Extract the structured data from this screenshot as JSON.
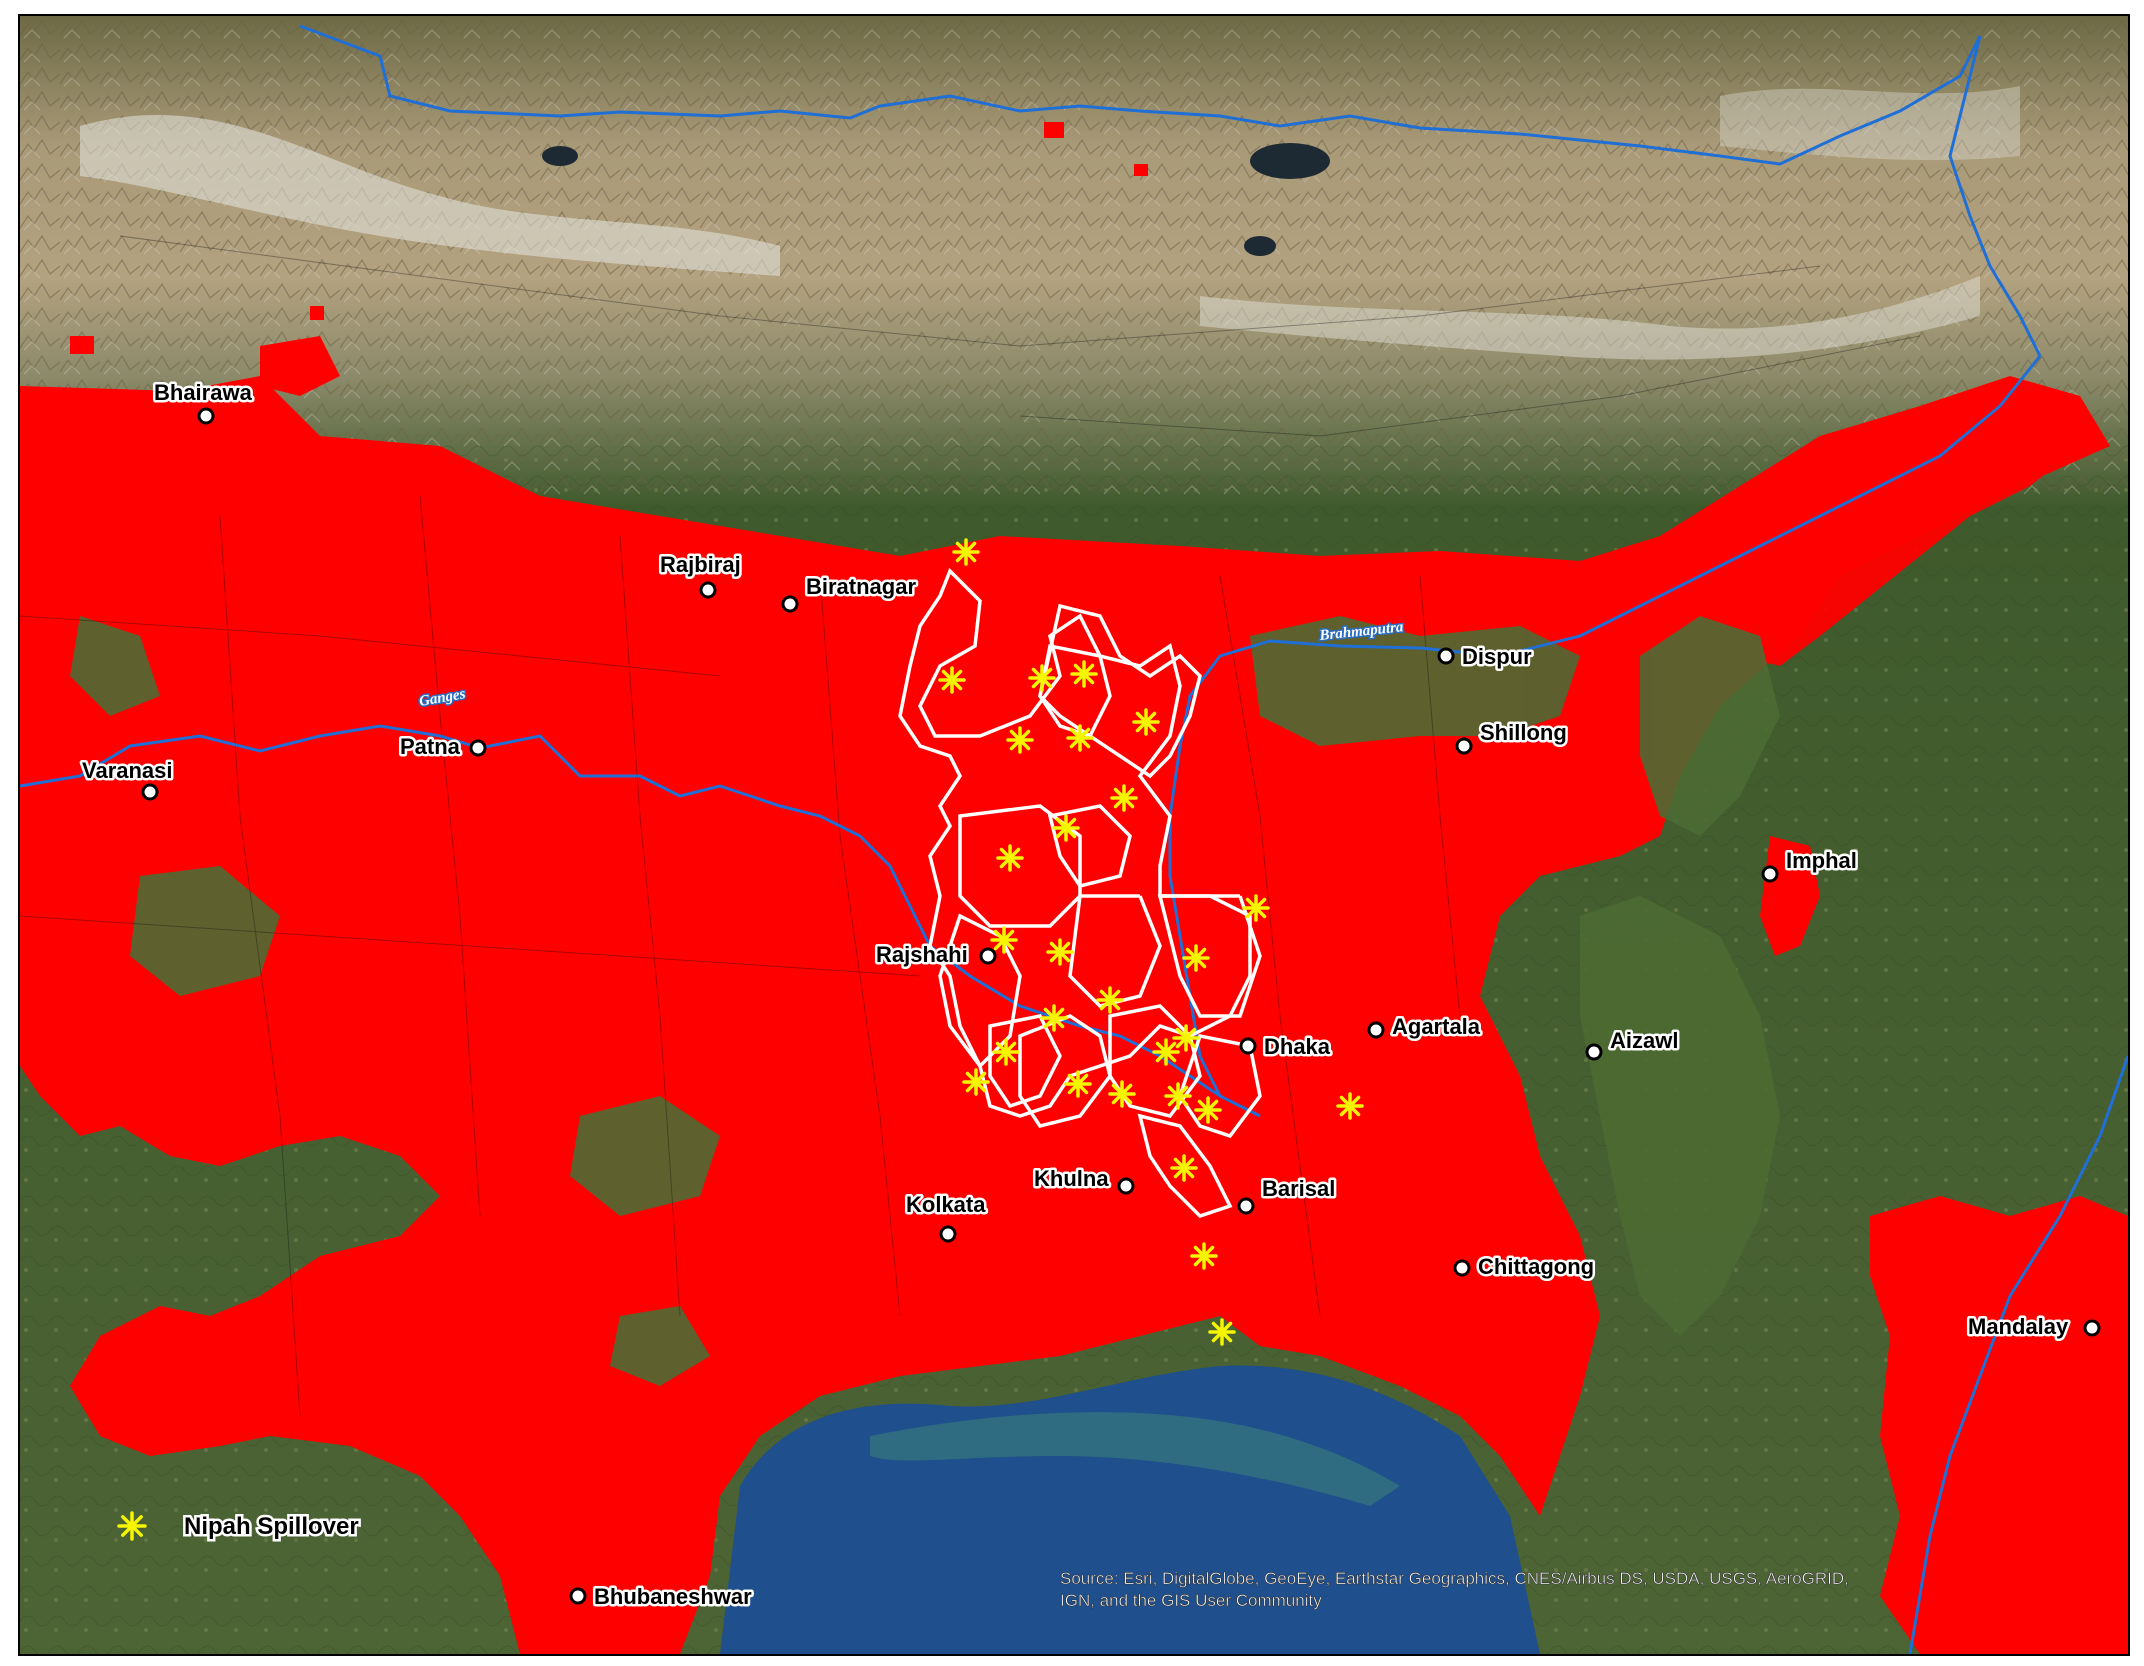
{
  "colors": {
    "suitability": "#ff0000",
    "river": "#1f6fd6",
    "spillover_star": "#f5f500",
    "district_outline": "#ffffff",
    "sea": "#1f4f8c",
    "mountains": "#9b8b6a",
    "snow": "#e8e8e8",
    "lowland": "#56693a"
  },
  "cities": [
    {
      "name": "Bhairawa"
    },
    {
      "name": "Rajbiraj"
    },
    {
      "name": "Biratnagar"
    },
    {
      "name": "Dispur"
    },
    {
      "name": "Shillong"
    },
    {
      "name": "Patna"
    },
    {
      "name": "Varanasi"
    },
    {
      "name": "Imphal"
    },
    {
      "name": "Rajshahi"
    },
    {
      "name": "Dhaka"
    },
    {
      "name": "Agartala"
    },
    {
      "name": "Aizawl"
    },
    {
      "name": "Khulna"
    },
    {
      "name": "Barisal"
    },
    {
      "name": "Kolkata"
    },
    {
      "name": "Chittagong"
    },
    {
      "name": "Mandalay"
    },
    {
      "name": "Bhubaneshwar"
    }
  ],
  "rivers": [
    {
      "name": "Ganges"
    },
    {
      "name": "Brahmaputra"
    }
  ],
  "spillover_count": 28,
  "legend": {
    "icon": "asterisk-star-icon",
    "label": "Nipah Spillover"
  },
  "attribution": {
    "line1": "Source: Esri, DigitalGlobe, GeoEye, Earthstar Geographics, CNES/Airbus DS, USDA, USGS, AeroGRID,",
    "line2": "IGN, and the GIS User Community"
  }
}
